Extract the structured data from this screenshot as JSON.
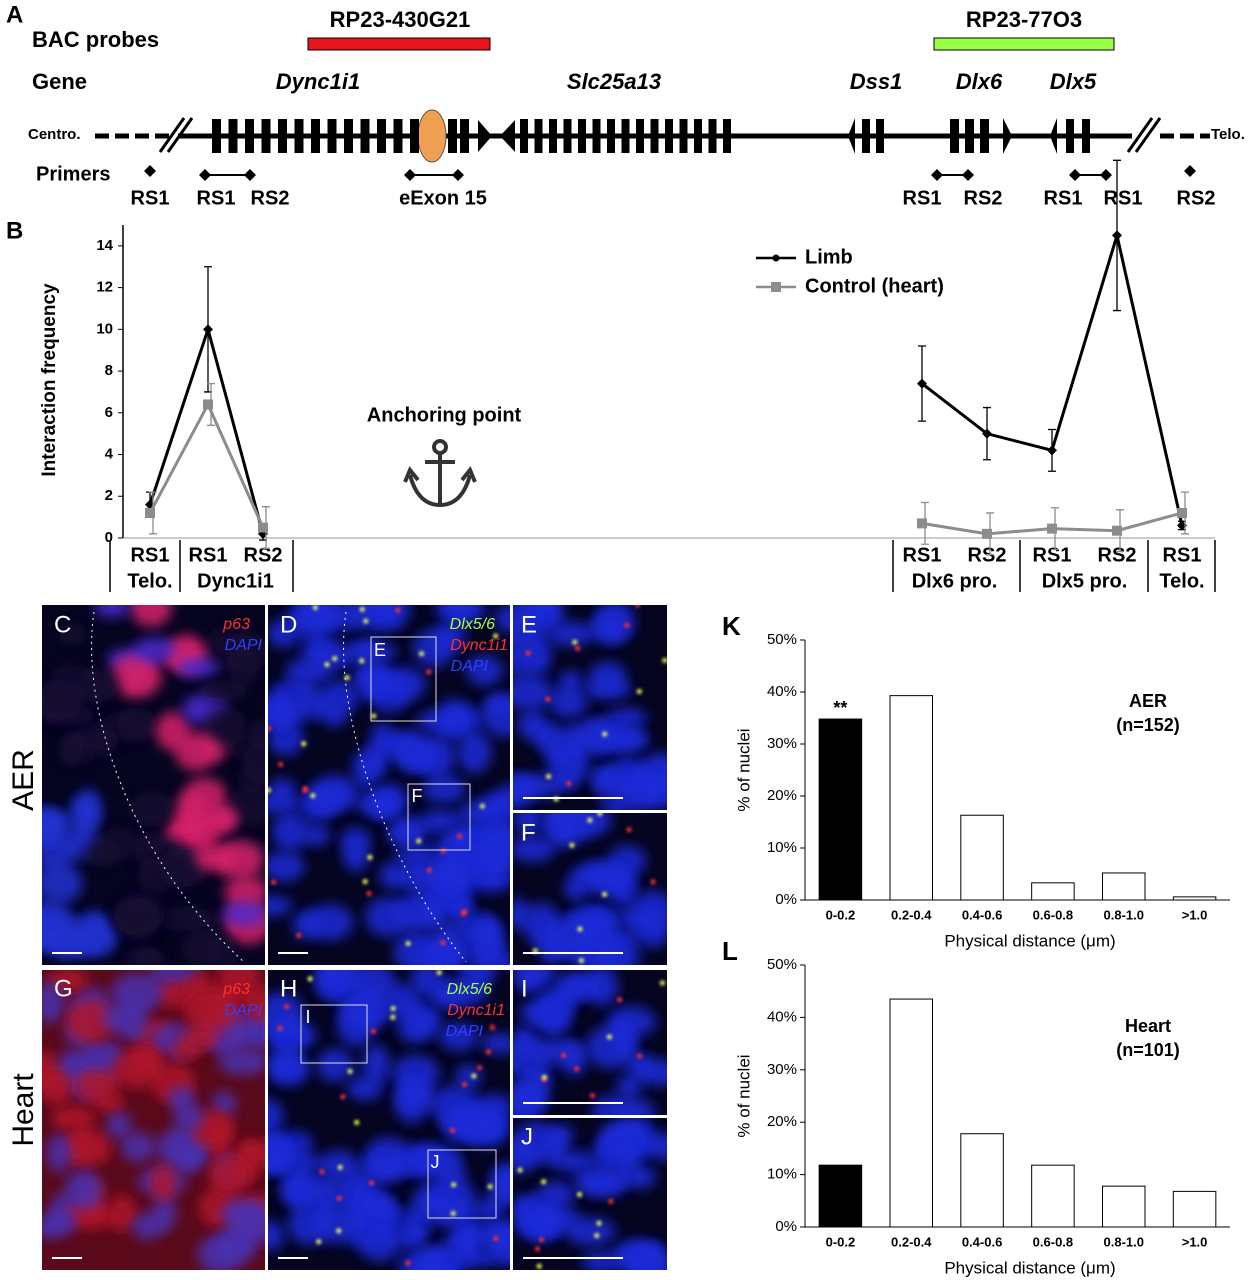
{
  "panel_a": {
    "label": "A",
    "row_labels": [
      "BAC probes",
      "Gene",
      "Primers"
    ],
    "probes": [
      "RP23-430G21",
      "RP23-77O3"
    ],
    "genes": [
      "Dync1i1",
      "Slc25a13",
      "Dss1",
      "Dlx6",
      "Dlx5"
    ],
    "ends": [
      "Centro.",
      "Telo."
    ],
    "primers": [
      "RS1",
      "RS1",
      "RS2",
      "eExon 15",
      "RS1",
      "RS2",
      "RS1",
      "RS1",
      "RS2"
    ]
  },
  "chart_data": [
    {
      "type": "line",
      "label": "B",
      "y_label": "Interaction frequency",
      "ylim": [
        0,
        15
      ],
      "yticks": [
        0,
        2,
        4,
        6,
        8,
        10,
        12,
        14
      ],
      "categories": [
        "RS1",
        "RS1",
        "RS2",
        "RS1",
        "RS2",
        "RS1",
        "RS2",
        "RS1"
      ],
      "groups": [
        "Telo.",
        "Dync1i1",
        "Dlx6 pro.",
        "Dlx5 pro.",
        "Telo."
      ],
      "annotation": "Anchoring point",
      "series": [
        {
          "name": "Limb",
          "color": "#000000",
          "values": [
            1.6,
            10.0,
            0.2,
            7.4,
            5.0,
            4.2,
            14.5,
            0.6
          ],
          "errors": [
            0.6,
            3.0,
            0.3,
            1.8,
            1.25,
            1.0,
            3.6,
            0.2
          ]
        },
        {
          "name": "Control (heart)",
          "color": "#8c8c8c",
          "values": [
            1.2,
            6.4,
            0.5,
            0.7,
            0.2,
            0.45,
            0.35,
            1.2
          ],
          "errors": [
            1.0,
            1.0,
            1.0,
            1.0,
            1.0,
            1.0,
            1.0,
            1.0
          ]
        }
      ]
    },
    {
      "type": "bar",
      "label": "K",
      "y_label": "% of nuclei",
      "x_label": "Physical distance (μm)",
      "annotation": [
        "AER",
        "(n=152)"
      ],
      "categories": [
        "0-0.2",
        "0.2-0.4",
        "0.4-0.6",
        "0.6-0.8",
        "0.8-1.0",
        ">1.0"
      ],
      "values": [
        34.8,
        39.3,
        16.3,
        3.3,
        5.2,
        0.6
      ],
      "colors": [
        "#000000",
        "#ffffff",
        "#ffffff",
        "#ffffff",
        "#ffffff",
        "#ffffff"
      ],
      "significance": [
        "**",
        null,
        null,
        null,
        null,
        null
      ],
      "ylim": [
        0,
        50
      ],
      "yticks": [
        {
          "value": 0,
          "label": "0%"
        },
        {
          "value": 10,
          "label": "10%"
        },
        {
          "value": 20,
          "label": "20%"
        },
        {
          "value": 30,
          "label": "30%"
        },
        {
          "value": 40,
          "label": "40%"
        },
        {
          "value": 50,
          "label": "50%"
        }
      ]
    },
    {
      "type": "bar",
      "label": "L",
      "y_label": "% of nuclei",
      "x_label": "Physical distance (μm)",
      "annotation": [
        "Heart",
        "(n=101)"
      ],
      "categories": [
        "0-0.2",
        "0.2-0.4",
        "0.4-0.6",
        "0.6-0.8",
        "0.8-1.0",
        ">1.0"
      ],
      "values": [
        11.8,
        43.5,
        17.8,
        11.8,
        7.8,
        6.8
      ],
      "colors": [
        "#000000",
        "#ffffff",
        "#ffffff",
        "#ffffff",
        "#ffffff",
        "#ffffff"
      ],
      "significance": [
        null,
        null,
        null,
        null,
        null,
        null
      ],
      "ylim": [
        0,
        50
      ],
      "yticks": [
        {
          "value": 0,
          "label": "0%"
        },
        {
          "value": 10,
          "label": "10%"
        },
        {
          "value": 20,
          "label": "20%"
        },
        {
          "value": 30,
          "label": "30%"
        },
        {
          "value": 40,
          "label": "40%"
        },
        {
          "value": 50,
          "label": "50%"
        }
      ]
    }
  ],
  "images": {
    "row_labels": [
      "AER",
      "Heart"
    ],
    "panels": [
      {
        "label": "C",
        "stains": [
          "p63",
          "DAPI"
        ]
      },
      {
        "label": "D",
        "stains": [
          "Dlx5/6",
          "Dync1i1",
          "DAPI"
        ]
      },
      {
        "label": "E"
      },
      {
        "label": "F"
      },
      {
        "label": "G",
        "stains": [
          "p63",
          "DAPI"
        ]
      },
      {
        "label": "H",
        "stains": [
          "Dlx5/6",
          "Dync1i1",
          "DAPI"
        ]
      },
      {
        "label": "I"
      },
      {
        "label": "J"
      }
    ],
    "insets": [
      "E",
      "F",
      "I",
      "J"
    ]
  }
}
